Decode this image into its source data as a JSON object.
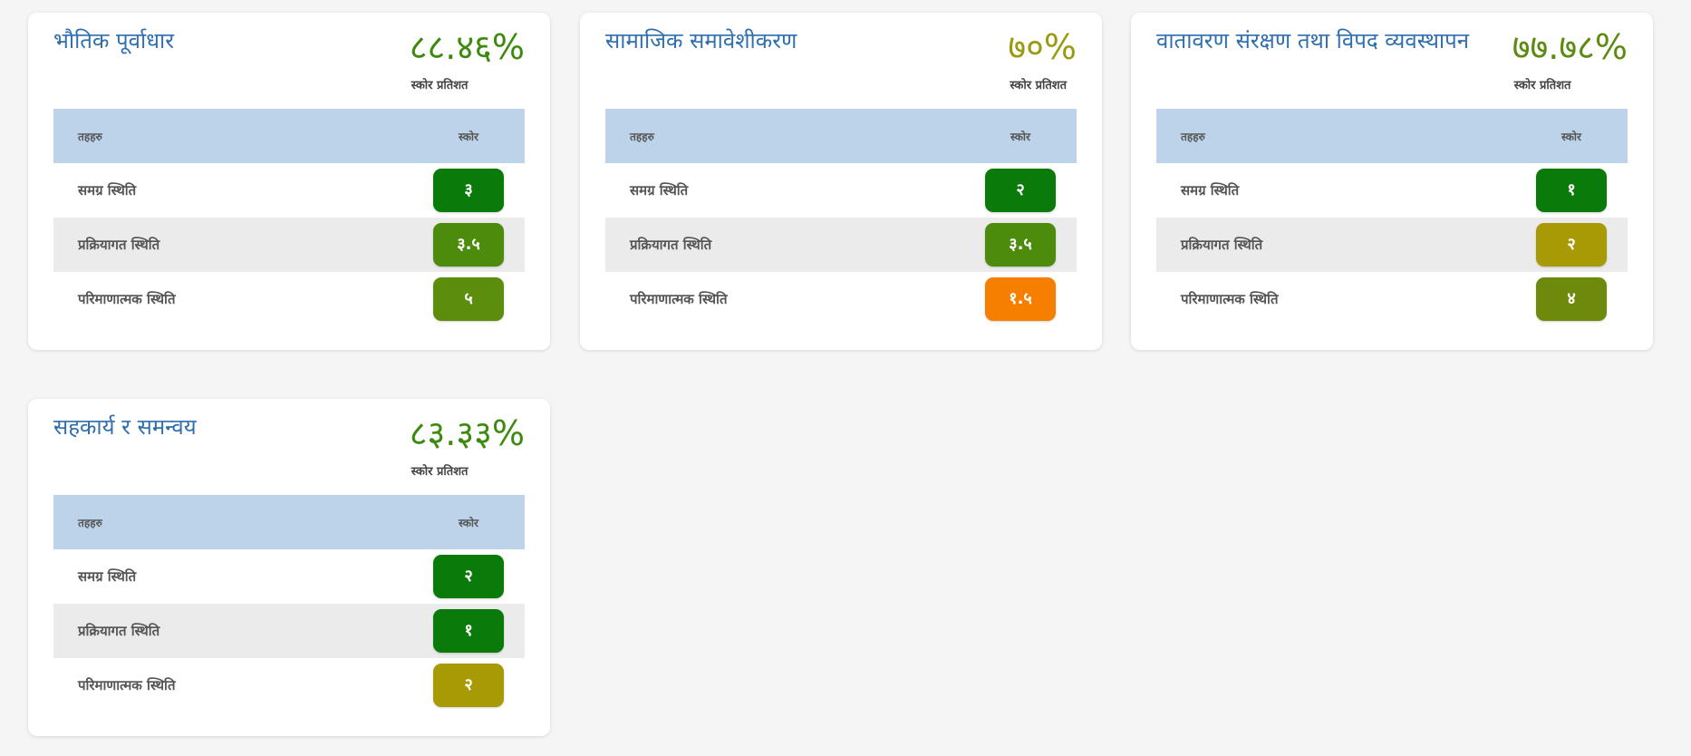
{
  "colors": {
    "title": "#2f6fb0",
    "header_row": "#bcd3ea",
    "alt_row": "#ebebeb",
    "pill_dark_green": "#0a7a0a",
    "pill_green": "#4d8b0c",
    "pill_olive": "#5c8d0c",
    "pill_olive2": "#6e8a0c",
    "pill_mustard": "#a89a05",
    "pill_orange": "#f77f00",
    "pct_green": "#3d8a0e",
    "pct_olive": "#9b9a12",
    "pct_olive2": "#5c8a12"
  },
  "cards": [
    {
      "title": "भौतिक पूर्वाधार",
      "percent": "८८.४६%",
      "percent_value": 88.46,
      "percent_color": "#3d8a0e",
      "caption": "स्कोर प्रतिशत",
      "headers": {
        "tier": "तहहरु",
        "score": "स्कोर"
      },
      "rows": [
        {
          "label": "समग्र स्थिति",
          "score": "३",
          "color": "#0a7a0a"
        },
        {
          "label": "प्रक्रियागत स्थिति",
          "score": "३.५",
          "color": "#4d8b0c"
        },
        {
          "label": "परिमाणात्मक स्थिति",
          "score": "५",
          "color": "#5c8d0c"
        }
      ]
    },
    {
      "title": "सामाजिक समावेशीकरण",
      "percent": "७०%",
      "percent_value": 70,
      "percent_color": "#9b9a12",
      "caption": "स्कोर प्रतिशत",
      "headers": {
        "tier": "तहहरु",
        "score": "स्कोर"
      },
      "rows": [
        {
          "label": "समग्र स्थिति",
          "score": "२",
          "color": "#0a7a0a"
        },
        {
          "label": "प्रक्रियागत स्थिति",
          "score": "३.५",
          "color": "#4d8b0c"
        },
        {
          "label": "परिमाणात्मक स्थिति",
          "score": "१.५",
          "color": "#f77f00"
        }
      ]
    },
    {
      "title": "वातावरण संरक्षण तथा विपद व्यवस्थापन",
      "percent": "७७.७८%",
      "percent_value": 77.78,
      "percent_color": "#5c8a12",
      "caption": "स्कोर प्रतिशत",
      "headers": {
        "tier": "तहहरु",
        "score": "स्कोर"
      },
      "rows": [
        {
          "label": "समग्र स्थिति",
          "score": "१",
          "color": "#0a7a0a"
        },
        {
          "label": "प्रक्रियागत स्थिति",
          "score": "२",
          "color": "#a89a05"
        },
        {
          "label": "परिमाणात्मक स्थिति",
          "score": "४",
          "color": "#6e8a0c"
        }
      ]
    },
    {
      "title": "सहकार्य र समन्वय",
      "percent": "८३.३३%",
      "percent_value": 83.33,
      "percent_color": "#3d8a0e",
      "caption": "स्कोर प्रतिशत",
      "headers": {
        "tier": "तहहरु",
        "score": "स्कोर"
      },
      "rows": [
        {
          "label": "समग्र स्थिति",
          "score": "२",
          "color": "#0a7a0a"
        },
        {
          "label": "प्रक्रियागत स्थिति",
          "score": "१",
          "color": "#0a7a0a"
        },
        {
          "label": "परिमाणात्मक स्थिति",
          "score": "२",
          "color": "#a89a05"
        }
      ]
    }
  ]
}
